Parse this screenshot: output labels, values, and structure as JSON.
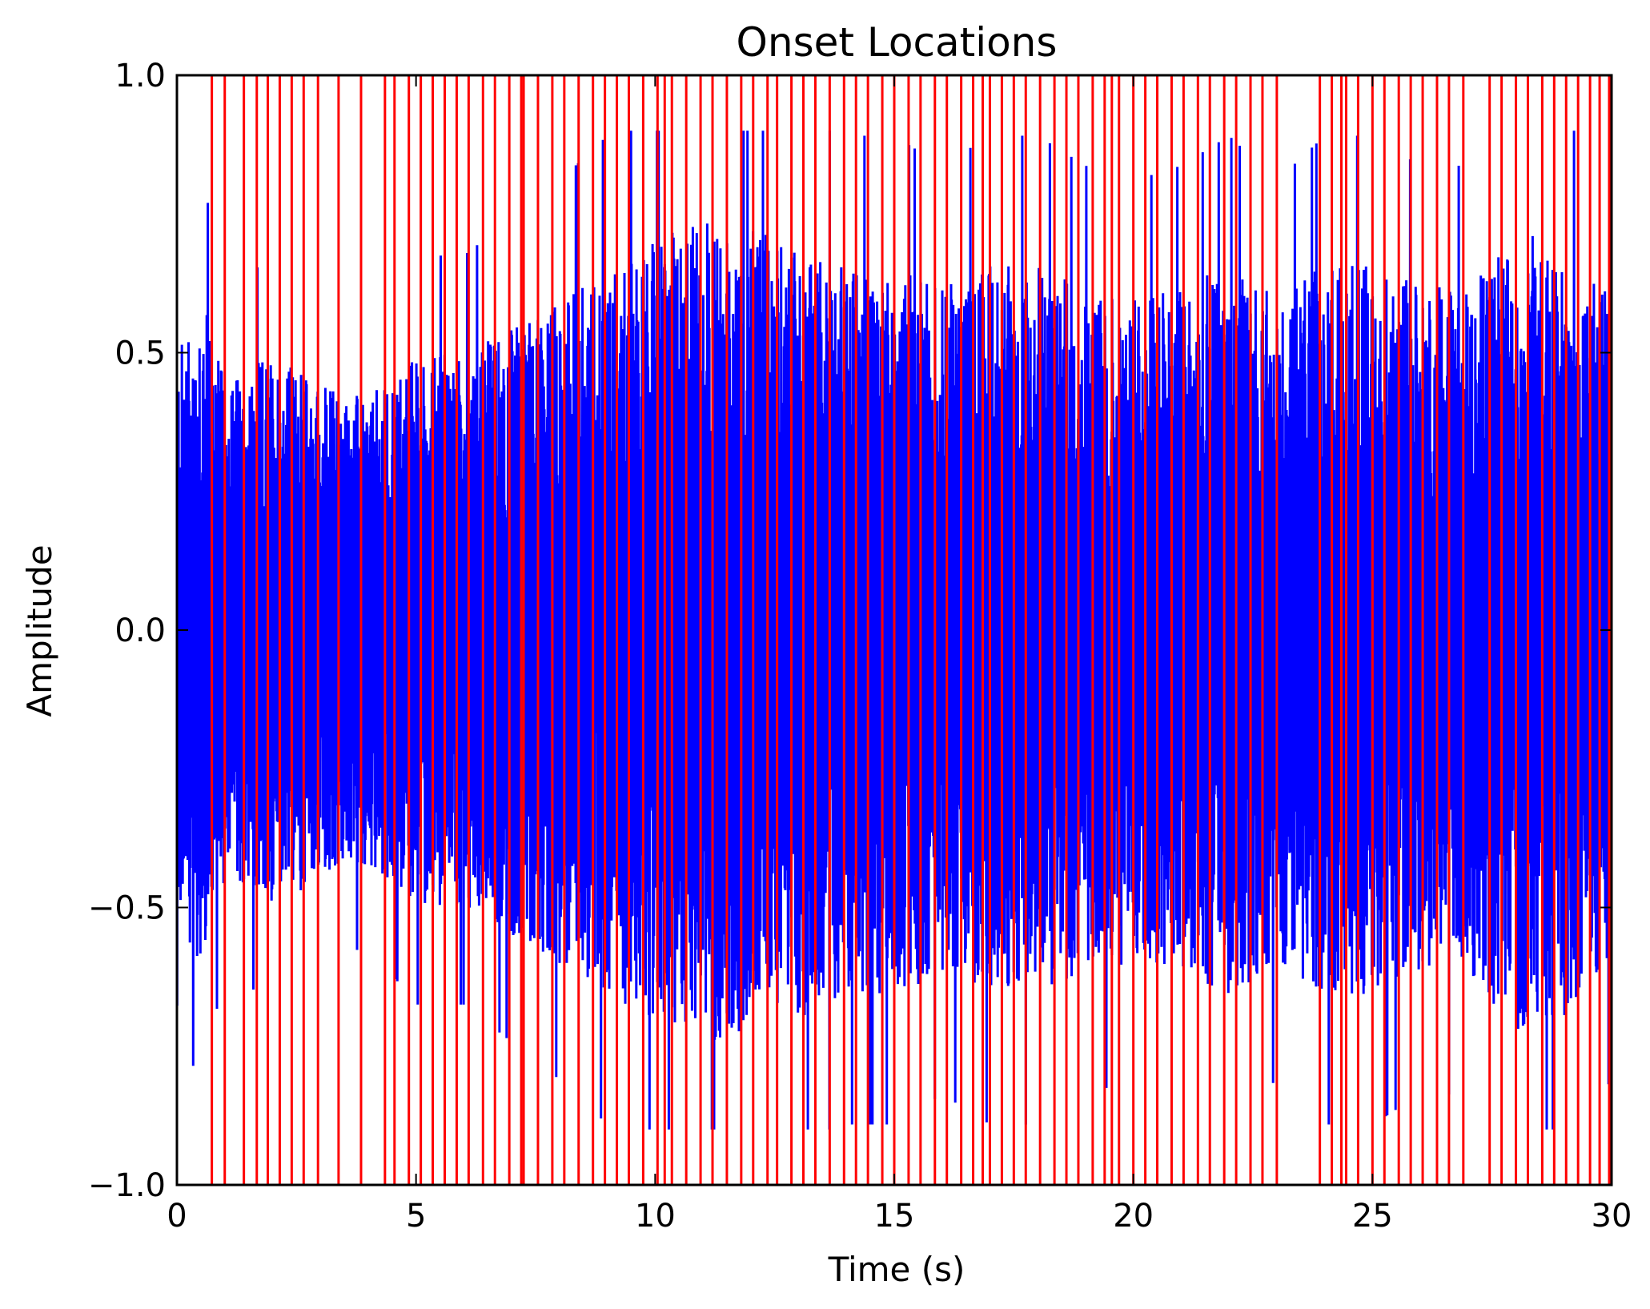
{
  "chart_data": {
    "type": "line",
    "title": "Onset Locations",
    "xlabel": "Time (s)",
    "ylabel": "Amplitude",
    "xlim": [
      0,
      30
    ],
    "ylim": [
      -1.0,
      1.0
    ],
    "xticks": [
      0,
      5,
      10,
      15,
      20,
      25,
      30
    ],
    "xtick_labels": [
      "0",
      "5",
      "10",
      "15",
      "20",
      "25",
      "30"
    ],
    "yticks": [
      1.0,
      0.5,
      0.0,
      -0.5,
      -1.0
    ],
    "ytick_labels": [
      "1.0",
      "0.5",
      "0.0",
      "−0.5",
      "−1.0"
    ],
    "grid": false,
    "series": [
      {
        "kind": "waveform",
        "color": "#0000ff",
        "duration_s": 30,
        "peak_amplitude": 0.9,
        "envelope": [
          [
            0.0,
            0.5
          ],
          [
            0.5,
            0.62
          ],
          [
            1.0,
            0.45
          ],
          [
            2.0,
            0.5
          ],
          [
            3.0,
            0.45
          ],
          [
            4.0,
            0.42
          ],
          [
            5.0,
            0.5
          ],
          [
            6.0,
            0.5
          ],
          [
            7.0,
            0.55
          ],
          [
            8.0,
            0.6
          ],
          [
            9.0,
            0.66
          ],
          [
            10.0,
            0.7
          ],
          [
            11.0,
            0.75
          ],
          [
            12.0,
            0.72
          ],
          [
            13.0,
            0.7
          ],
          [
            14.0,
            0.66
          ],
          [
            15.0,
            0.66
          ],
          [
            16.0,
            0.62
          ],
          [
            17.0,
            0.66
          ],
          [
            18.0,
            0.66
          ],
          [
            19.0,
            0.62
          ],
          [
            20.0,
            0.6
          ],
          [
            21.0,
            0.62
          ],
          [
            22.0,
            0.66
          ],
          [
            23.0,
            0.6
          ],
          [
            24.0,
            0.66
          ],
          [
            25.0,
            0.66
          ],
          [
            26.0,
            0.62
          ],
          [
            27.0,
            0.62
          ],
          [
            28.0,
            0.72
          ],
          [
            29.0,
            0.7
          ],
          [
            30.0,
            0.6
          ]
        ]
      },
      {
        "kind": "onset_markers",
        "color": "#ff0000",
        "onset_times_s": [
          0.73,
          1.0,
          1.4,
          1.67,
          1.9,
          2.15,
          2.4,
          2.65,
          2.95,
          3.38,
          3.85,
          4.35,
          4.55,
          4.85,
          5.1,
          5.35,
          5.6,
          5.85,
          6.1,
          6.4,
          6.65,
          6.95,
          7.2,
          7.25,
          7.55,
          7.85,
          8.1,
          8.4,
          8.7,
          8.95,
          9.2,
          9.45,
          9.75,
          10.05,
          10.2,
          10.35,
          10.65,
          10.95,
          11.2,
          11.5,
          11.8,
          12.05,
          12.35,
          12.55,
          12.85,
          13.1,
          13.35,
          13.65,
          13.95,
          14.2,
          14.45,
          14.75,
          15.0,
          15.3,
          15.55,
          15.85,
          16.1,
          16.4,
          16.65,
          16.85,
          17.0,
          17.25,
          17.5,
          17.75,
          18.05,
          18.35,
          18.6,
          18.85,
          19.15,
          19.4,
          19.55,
          19.7,
          20.0,
          20.25,
          20.5,
          20.8,
          21.05,
          21.35,
          21.6,
          21.9,
          22.15,
          22.45,
          22.7,
          23.0,
          23.9,
          24.15,
          24.35,
          24.45,
          24.7,
          25.0,
          25.25,
          25.55,
          25.8,
          26.05,
          26.35,
          26.6,
          26.9,
          27.45,
          27.7,
          28.0,
          28.25,
          28.55,
          28.8,
          29.05,
          29.3,
          29.55,
          29.75,
          29.95
        ]
      }
    ]
  }
}
